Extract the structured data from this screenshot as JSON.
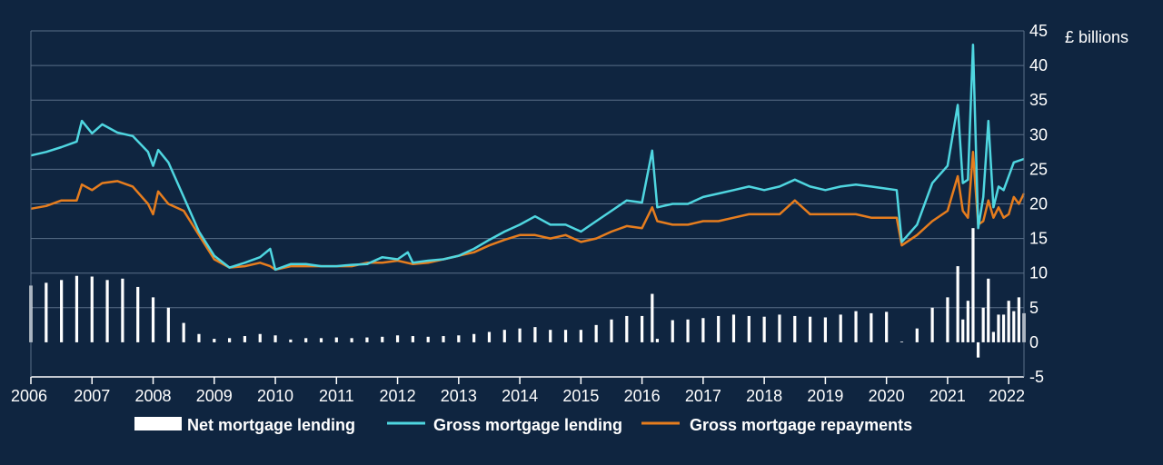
{
  "chart_data": {
    "type": "bar+line",
    "ylabel": "£ billions",
    "ylim": [
      -5,
      45
    ],
    "yticks": [
      -5,
      0,
      5,
      10,
      15,
      20,
      25,
      30,
      35,
      40,
      45
    ],
    "xlim": [
      "2006-01",
      "2022-04"
    ],
    "xticks": [
      "2006",
      "2007",
      "2008",
      "2009",
      "2010",
      "2011",
      "2012",
      "2013",
      "2014",
      "2015",
      "2016",
      "2017",
      "2018",
      "2019",
      "2020",
      "2021",
      "2022"
    ],
    "grid": true,
    "legend_position": "bottom",
    "colors": {
      "background": "#0f2540",
      "net": "#ffffff",
      "gross": "#4fd6e0",
      "repayments": "#e67d1e",
      "grid": "#5a6f88",
      "axis": "#ffffff"
    },
    "series": [
      {
        "name": "Net mortgage lending",
        "type": "bar",
        "key": "net",
        "points": [
          [
            "2006-01",
            8.2
          ],
          [
            "2006-04",
            8.6
          ],
          [
            "2006-07",
            9.0
          ],
          [
            "2006-10",
            9.6
          ],
          [
            "2007-01",
            9.5
          ],
          [
            "2007-04",
            9.0
          ],
          [
            "2007-07",
            9.2
          ],
          [
            "2007-10",
            8.0
          ],
          [
            "2008-01",
            6.5
          ],
          [
            "2008-04",
            5.0
          ],
          [
            "2008-07",
            2.8
          ],
          [
            "2008-10",
            1.2
          ],
          [
            "2009-01",
            0.5
          ],
          [
            "2009-04",
            0.6
          ],
          [
            "2009-07",
            0.9
          ],
          [
            "2009-10",
            1.2
          ],
          [
            "2010-01",
            1.0
          ],
          [
            "2010-04",
            0.4
          ],
          [
            "2010-07",
            0.6
          ],
          [
            "2010-10",
            0.6
          ],
          [
            "2011-01",
            0.7
          ],
          [
            "2011-04",
            0.6
          ],
          [
            "2011-07",
            0.7
          ],
          [
            "2011-10",
            0.8
          ],
          [
            "2012-01",
            1.0
          ],
          [
            "2012-04",
            0.9
          ],
          [
            "2012-07",
            0.8
          ],
          [
            "2012-10",
            0.9
          ],
          [
            "2013-01",
            1.0
          ],
          [
            "2013-04",
            1.2
          ],
          [
            "2013-07",
            1.5
          ],
          [
            "2013-10",
            1.8
          ],
          [
            "2014-01",
            2.0
          ],
          [
            "2014-04",
            2.2
          ],
          [
            "2014-07",
            1.8
          ],
          [
            "2014-10",
            1.8
          ],
          [
            "2015-01",
            1.8
          ],
          [
            "2015-04",
            2.5
          ],
          [
            "2015-07",
            3.3
          ],
          [
            "2015-10",
            3.8
          ],
          [
            "2016-01",
            3.8
          ],
          [
            "2016-03",
            7.0
          ],
          [
            "2016-04",
            0.5
          ],
          [
            "2016-07",
            3.2
          ],
          [
            "2016-10",
            3.3
          ],
          [
            "2017-01",
            3.5
          ],
          [
            "2017-04",
            3.8
          ],
          [
            "2017-07",
            4.0
          ],
          [
            "2017-10",
            3.8
          ],
          [
            "2018-01",
            3.7
          ],
          [
            "2018-04",
            4.0
          ],
          [
            "2018-07",
            3.8
          ],
          [
            "2018-10",
            3.7
          ],
          [
            "2019-01",
            3.6
          ],
          [
            "2019-04",
            4.0
          ],
          [
            "2019-07",
            4.5
          ],
          [
            "2019-10",
            4.2
          ],
          [
            "2020-01",
            4.4
          ],
          [
            "2020-04",
            0.1
          ],
          [
            "2020-07",
            2.0
          ],
          [
            "2020-10",
            5.0
          ],
          [
            "2021-01",
            6.5
          ],
          [
            "2021-03",
            11.0
          ],
          [
            "2021-04",
            3.3
          ],
          [
            "2021-05",
            6.0
          ],
          [
            "2021-06",
            16.5
          ],
          [
            "2021-07",
            -2.2
          ],
          [
            "2021-08",
            5.0
          ],
          [
            "2021-09",
            9.2
          ],
          [
            "2021-10",
            1.5
          ],
          [
            "2021-11",
            4.0
          ],
          [
            "2021-12",
            4.0
          ],
          [
            "2022-01",
            6.0
          ],
          [
            "2022-02",
            4.5
          ],
          [
            "2022-03",
            6.5
          ],
          [
            "2022-04",
            4.2
          ]
        ]
      },
      {
        "name": "Gross mortgage lending",
        "type": "line",
        "key": "gross",
        "points": [
          [
            "2006-01",
            27.0
          ],
          [
            "2006-04",
            27.5
          ],
          [
            "2006-07",
            28.2
          ],
          [
            "2006-10",
            29.0
          ],
          [
            "2006-11",
            32.0
          ],
          [
            "2007-01",
            30.2
          ],
          [
            "2007-03",
            31.5
          ],
          [
            "2007-06",
            30.3
          ],
          [
            "2007-09",
            29.8
          ],
          [
            "2007-12",
            27.5
          ],
          [
            "2008-01",
            25.5
          ],
          [
            "2008-02",
            27.8
          ],
          [
            "2008-04",
            26.0
          ],
          [
            "2008-07",
            21.0
          ],
          [
            "2008-10",
            16.0
          ],
          [
            "2009-01",
            12.5
          ],
          [
            "2009-04",
            10.8
          ],
          [
            "2009-07",
            11.5
          ],
          [
            "2009-10",
            12.3
          ],
          [
            "2009-12",
            13.5
          ],
          [
            "2010-01",
            10.5
          ],
          [
            "2010-04",
            11.3
          ],
          [
            "2010-07",
            11.3
          ],
          [
            "2010-10",
            11.0
          ],
          [
            "2011-01",
            11.0
          ],
          [
            "2011-04",
            11.2
          ],
          [
            "2011-07",
            11.3
          ],
          [
            "2011-10",
            12.3
          ],
          [
            "2012-01",
            12.0
          ],
          [
            "2012-03",
            13.0
          ],
          [
            "2012-04",
            11.5
          ],
          [
            "2012-07",
            11.8
          ],
          [
            "2012-10",
            12.0
          ],
          [
            "2013-01",
            12.5
          ],
          [
            "2013-04",
            13.5
          ],
          [
            "2013-07",
            14.8
          ],
          [
            "2013-10",
            16.0
          ],
          [
            "2014-01",
            17.0
          ],
          [
            "2014-04",
            18.2
          ],
          [
            "2014-07",
            17.0
          ],
          [
            "2014-10",
            17.0
          ],
          [
            "2015-01",
            16.0
          ],
          [
            "2015-04",
            17.5
          ],
          [
            "2015-07",
            19.0
          ],
          [
            "2015-10",
            20.5
          ],
          [
            "2016-01",
            20.2
          ],
          [
            "2016-03",
            27.7
          ],
          [
            "2016-04",
            19.5
          ],
          [
            "2016-07",
            20.0
          ],
          [
            "2016-10",
            20.0
          ],
          [
            "2017-01",
            21.0
          ],
          [
            "2017-04",
            21.5
          ],
          [
            "2017-07",
            22.0
          ],
          [
            "2017-10",
            22.5
          ],
          [
            "2018-01",
            22.0
          ],
          [
            "2018-04",
            22.5
          ],
          [
            "2018-07",
            23.5
          ],
          [
            "2018-10",
            22.5
          ],
          [
            "2019-01",
            22.0
          ],
          [
            "2019-04",
            22.5
          ],
          [
            "2019-07",
            22.8
          ],
          [
            "2019-10",
            22.5
          ],
          [
            "2020-01",
            22.2
          ],
          [
            "2020-03",
            22.0
          ],
          [
            "2020-04",
            14.5
          ],
          [
            "2020-07",
            17.0
          ],
          [
            "2020-10",
            23.0
          ],
          [
            "2021-01",
            25.5
          ],
          [
            "2021-03",
            34.3
          ],
          [
            "2021-04",
            23.0
          ],
          [
            "2021-05",
            23.5
          ],
          [
            "2021-06",
            43.0
          ],
          [
            "2021-07",
            16.5
          ],
          [
            "2021-08",
            21.0
          ],
          [
            "2021-09",
            32.0
          ],
          [
            "2021-10",
            19.5
          ],
          [
            "2021-11",
            22.5
          ],
          [
            "2021-12",
            22.0
          ],
          [
            "2022-01",
            24.0
          ],
          [
            "2022-02",
            26.0
          ],
          [
            "2022-04",
            26.5
          ]
        ]
      },
      {
        "name": "Gross mortgage repayments",
        "type": "line",
        "key": "repayments",
        "points": [
          [
            "2006-01",
            19.3
          ],
          [
            "2006-04",
            19.7
          ],
          [
            "2006-07",
            20.5
          ],
          [
            "2006-10",
            20.5
          ],
          [
            "2006-11",
            22.8
          ],
          [
            "2007-01",
            22.0
          ],
          [
            "2007-03",
            23.0
          ],
          [
            "2007-06",
            23.3
          ],
          [
            "2007-09",
            22.5
          ],
          [
            "2007-12",
            20.0
          ],
          [
            "2008-01",
            18.5
          ],
          [
            "2008-02",
            21.8
          ],
          [
            "2008-04",
            20.0
          ],
          [
            "2008-07",
            19.0
          ],
          [
            "2008-10",
            15.5
          ],
          [
            "2009-01",
            12.0
          ],
          [
            "2009-04",
            10.8
          ],
          [
            "2009-07",
            11.0
          ],
          [
            "2009-10",
            11.5
          ],
          [
            "2009-12",
            11.0
          ],
          [
            "2010-01",
            10.5
          ],
          [
            "2010-04",
            11.0
          ],
          [
            "2010-07",
            11.0
          ],
          [
            "2010-10",
            11.0
          ],
          [
            "2011-01",
            11.0
          ],
          [
            "2011-04",
            11.0
          ],
          [
            "2011-07",
            11.5
          ],
          [
            "2011-10",
            11.5
          ],
          [
            "2012-01",
            11.8
          ],
          [
            "2012-04",
            11.3
          ],
          [
            "2012-07",
            11.5
          ],
          [
            "2012-10",
            12.0
          ],
          [
            "2013-01",
            12.5
          ],
          [
            "2013-04",
            13.0
          ],
          [
            "2013-07",
            14.0
          ],
          [
            "2013-10",
            14.8
          ],
          [
            "2014-01",
            15.5
          ],
          [
            "2014-04",
            15.5
          ],
          [
            "2014-07",
            15.0
          ],
          [
            "2014-10",
            15.5
          ],
          [
            "2015-01",
            14.5
          ],
          [
            "2015-04",
            15.0
          ],
          [
            "2015-07",
            16.0
          ],
          [
            "2015-10",
            16.8
          ],
          [
            "2016-01",
            16.5
          ],
          [
            "2016-03",
            19.5
          ],
          [
            "2016-04",
            17.5
          ],
          [
            "2016-07",
            17.0
          ],
          [
            "2016-10",
            17.0
          ],
          [
            "2017-01",
            17.5
          ],
          [
            "2017-04",
            17.5
          ],
          [
            "2017-07",
            18.0
          ],
          [
            "2017-10",
            18.5
          ],
          [
            "2018-01",
            18.5
          ],
          [
            "2018-04",
            18.5
          ],
          [
            "2018-07",
            20.5
          ],
          [
            "2018-10",
            18.5
          ],
          [
            "2019-01",
            18.5
          ],
          [
            "2019-04",
            18.5
          ],
          [
            "2019-07",
            18.5
          ],
          [
            "2019-10",
            18.0
          ],
          [
            "2020-01",
            18.0
          ],
          [
            "2020-03",
            18.0
          ],
          [
            "2020-04",
            14.0
          ],
          [
            "2020-07",
            15.5
          ],
          [
            "2020-10",
            17.5
          ],
          [
            "2021-01",
            19.0
          ],
          [
            "2021-03",
            24.0
          ],
          [
            "2021-04",
            19.0
          ],
          [
            "2021-05",
            18.0
          ],
          [
            "2021-06",
            27.5
          ],
          [
            "2021-07",
            17.0
          ],
          [
            "2021-08",
            17.5
          ],
          [
            "2021-09",
            20.5
          ],
          [
            "2021-10",
            18.0
          ],
          [
            "2021-11",
            19.5
          ],
          [
            "2021-12",
            18.0
          ],
          [
            "2022-01",
            18.5
          ],
          [
            "2022-02",
            21.0
          ],
          [
            "2022-03",
            20.0
          ],
          [
            "2022-04",
            21.5
          ]
        ]
      }
    ]
  }
}
